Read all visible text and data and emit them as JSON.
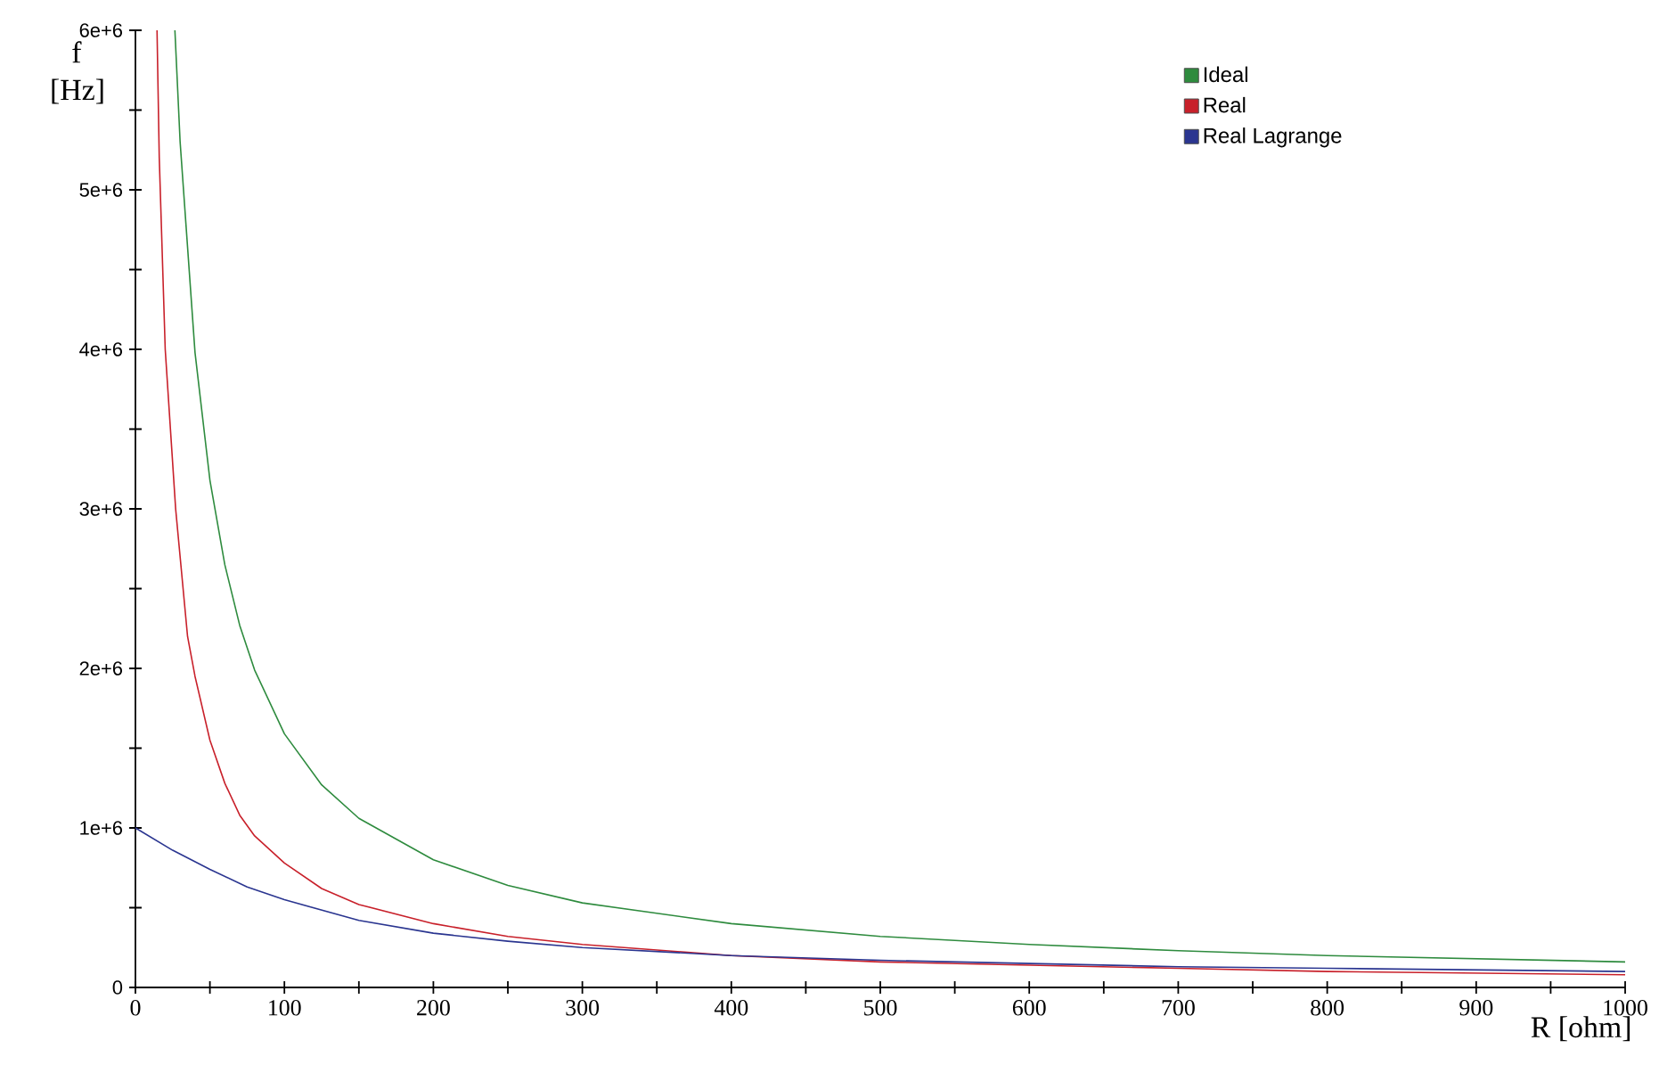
{
  "chart_data": {
    "type": "line",
    "xlabel": "R [ohm]",
    "ylabel": "f [Hz]",
    "xlim": [
      0,
      1000
    ],
    "ylim": [
      0,
      6000000
    ],
    "xticks": [
      0,
      {
        "value": 50,
        "label": null
      },
      100,
      {
        "value": 150,
        "label": null
      },
      200,
      {
        "value": 250,
        "label": null
      },
      300,
      {
        "value": 350,
        "label": null
      },
      400,
      {
        "value": 450,
        "label": null
      },
      500,
      {
        "value": 550,
        "label": null
      },
      600,
      {
        "value": 650,
        "label": null
      },
      700,
      {
        "value": 750,
        "label": null
      },
      800,
      {
        "value": 850,
        "label": null
      },
      900,
      {
        "value": 950,
        "label": null
      },
      1000
    ],
    "yticks": [
      0,
      {
        "value": 500000,
        "label": null
      },
      {
        "value": 1000000,
        "label": "1e+6"
      },
      {
        "value": 1500000,
        "label": null
      },
      {
        "value": 2000000,
        "label": "2e+6"
      },
      {
        "value": 2500000,
        "label": null
      },
      {
        "value": 3000000,
        "label": "3e+6"
      },
      {
        "value": 3500000,
        "label": null
      },
      {
        "value": 4000000,
        "label": "4e+6"
      },
      {
        "value": 4500000,
        "label": null
      },
      {
        "value": 5000000,
        "label": "5e+6"
      },
      {
        "value": 5500000,
        "label": null
      },
      {
        "value": 6000000,
        "label": "6e+6"
      }
    ],
    "legend": "top right",
    "line_style": "solid",
    "series": [
      {
        "name": "Ideal",
        "color": "#2e8b3e",
        "x": [
          26.5,
          30,
          40,
          50,
          60,
          70,
          80,
          100,
          125,
          150,
          200,
          250,
          300,
          400,
          500,
          600,
          700,
          800,
          900,
          1000
        ],
        "values": [
          6000000,
          5300000,
          3980000,
          3180000,
          2650000,
          2270000,
          1990000,
          1590000,
          1270000,
          1060000,
          800000,
          640000,
          530000,
          400000,
          320000,
          270000,
          230000,
          200000,
          180000,
          160000
        ]
      },
      {
        "name": "Real",
        "color": "#c8202a",
        "x": [
          14.5,
          16,
          20,
          27,
          35,
          40,
          50,
          60,
          70,
          80,
          100,
          125,
          150,
          200,
          250,
          300,
          400,
          500,
          600,
          700,
          800,
          900,
          1000
        ],
        "values": [
          6000000,
          5200000,
          4000000,
          3000000,
          2200000,
          1950000,
          1550000,
          1280000,
          1080000,
          950000,
          780000,
          620000,
          520000,
          400000,
          320000,
          270000,
          200000,
          160000,
          140000,
          120000,
          100000,
          90000,
          80000
        ]
      },
      {
        "name": "Real Lagrange",
        "color": "#2a3590",
        "x": [
          0,
          25,
          50,
          75,
          100,
          150,
          200,
          250,
          300,
          400,
          500,
          600,
          700,
          800,
          900,
          1000
        ],
        "values": [
          1000000,
          860000,
          740000,
          630000,
          550000,
          420000,
          340000,
          290000,
          250000,
          200000,
          170000,
          150000,
          130000,
          120000,
          110000,
          100000
        ]
      }
    ]
  }
}
